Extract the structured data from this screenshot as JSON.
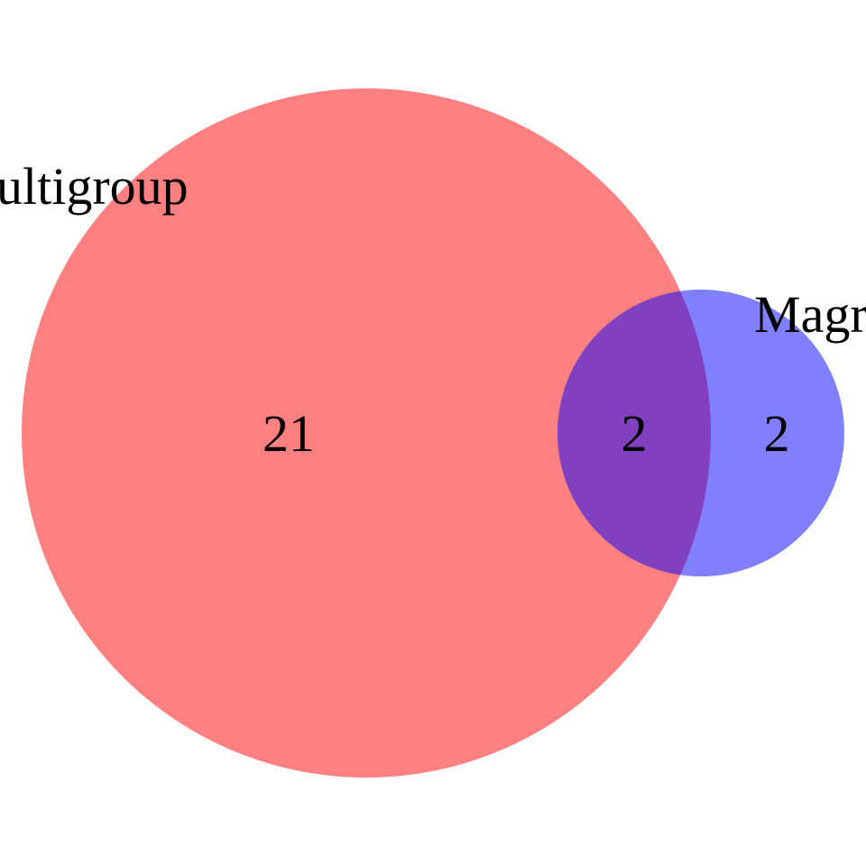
{
  "sets": [
    {
      "label": "ultigroup",
      "size": 23,
      "color": "#ff0000"
    },
    {
      "label": "Magr",
      "size": 4,
      "color": "#0000ff"
    }
  ],
  "regions": {
    "only_first": "21",
    "overlap": "2",
    "only_second": "2"
  },
  "colors": {
    "overlap": "#8040c0"
  }
}
